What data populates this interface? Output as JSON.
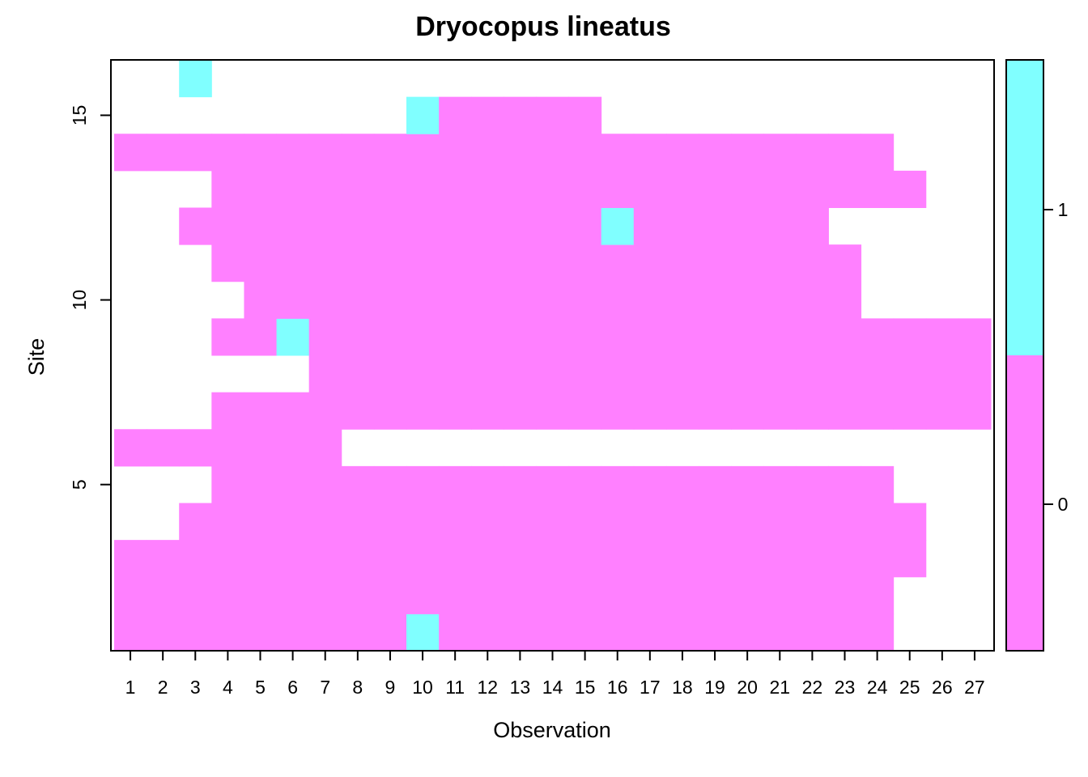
{
  "chart_data": {
    "type": "heatmap",
    "title": "Dryocopus lineatus",
    "xlabel": "Observation",
    "ylabel": "Site",
    "x_ticks": [
      "1",
      "2",
      "3",
      "4",
      "5",
      "6",
      "7",
      "8",
      "9",
      "10",
      "11",
      "12",
      "13",
      "14",
      "15",
      "16",
      "17",
      "18",
      "19",
      "20",
      "21",
      "22",
      "23",
      "24",
      "25",
      "26",
      "27"
    ],
    "y_ticks": [
      "5",
      "10",
      "15"
    ],
    "y_tick_values": [
      5,
      10,
      15
    ],
    "xlim": [
      0.5,
      27.5
    ],
    "ylim": [
      0.5,
      16.5
    ],
    "n_sites": 16,
    "n_obs": 27,
    "colors": {
      "0": "#FF80FF",
      "1": "#80FFFF",
      "NA": "#FFFFFF"
    },
    "legend": {
      "levels": [
        "0",
        "1"
      ],
      "position": "right"
    },
    "matrix_note": "rows = sites 1..16 (bottom to top); columns = observations 1..27; null = missing",
    "values": [
      [
        0,
        0,
        0,
        0,
        0,
        0,
        0,
        0,
        0,
        1,
        0,
        0,
        0,
        0,
        0,
        0,
        0,
        0,
        0,
        0,
        0,
        0,
        0,
        0,
        null,
        null,
        null
      ],
      [
        0,
        0,
        0,
        0,
        0,
        0,
        0,
        0,
        0,
        0,
        0,
        0,
        0,
        0,
        0,
        0,
        0,
        0,
        0,
        0,
        0,
        0,
        0,
        0,
        null,
        null,
        null
      ],
      [
        0,
        0,
        0,
        0,
        0,
        0,
        0,
        0,
        0,
        0,
        0,
        0,
        0,
        0,
        0,
        0,
        0,
        0,
        0,
        0,
        0,
        0,
        0,
        0,
        0,
        null,
        null
      ],
      [
        null,
        null,
        0,
        0,
        0,
        0,
        0,
        0,
        0,
        0,
        0,
        0,
        0,
        0,
        0,
        0,
        0,
        0,
        0,
        0,
        0,
        0,
        0,
        0,
        0,
        null,
        null
      ],
      [
        null,
        null,
        null,
        0,
        0,
        0,
        0,
        0,
        0,
        0,
        0,
        0,
        0,
        0,
        0,
        0,
        0,
        0,
        0,
        0,
        0,
        0,
        0,
        0,
        null,
        null,
        null
      ],
      [
        0,
        0,
        0,
        0,
        0,
        0,
        0,
        null,
        null,
        null,
        null,
        null,
        null,
        null,
        null,
        null,
        null,
        null,
        null,
        null,
        null,
        null,
        null,
        null,
        null,
        null,
        null
      ],
      [
        null,
        null,
        null,
        0,
        0,
        0,
        0,
        0,
        0,
        0,
        0,
        0,
        0,
        0,
        0,
        0,
        0,
        0,
        0,
        0,
        0,
        0,
        0,
        0,
        0,
        0,
        0
      ],
      [
        null,
        null,
        null,
        null,
        null,
        null,
        0,
        0,
        0,
        0,
        0,
        0,
        0,
        0,
        0,
        0,
        0,
        0,
        0,
        0,
        0,
        0,
        0,
        0,
        0,
        0,
        0
      ],
      [
        null,
        null,
        null,
        0,
        0,
        1,
        0,
        0,
        0,
        0,
        0,
        0,
        0,
        0,
        0,
        0,
        0,
        0,
        0,
        0,
        0,
        0,
        0,
        0,
        0,
        0,
        0
      ],
      [
        null,
        null,
        null,
        null,
        0,
        0,
        0,
        0,
        0,
        0,
        0,
        0,
        0,
        0,
        0,
        0,
        0,
        0,
        0,
        0,
        0,
        0,
        0,
        null,
        null,
        null,
        null
      ],
      [
        null,
        null,
        null,
        0,
        0,
        0,
        0,
        0,
        0,
        0,
        0,
        0,
        0,
        0,
        0,
        0,
        0,
        0,
        0,
        0,
        0,
        0,
        0,
        null,
        null,
        null,
        null
      ],
      [
        null,
        null,
        0,
        0,
        0,
        0,
        0,
        0,
        0,
        0,
        0,
        0,
        0,
        0,
        0,
        1,
        0,
        0,
        0,
        0,
        0,
        0,
        null,
        null,
        null,
        null,
        null
      ],
      [
        null,
        null,
        null,
        0,
        0,
        0,
        0,
        0,
        0,
        0,
        0,
        0,
        0,
        0,
        0,
        0,
        0,
        0,
        0,
        0,
        0,
        0,
        0,
        0,
        0,
        null,
        null
      ],
      [
        0,
        0,
        0,
        0,
        0,
        0,
        0,
        0,
        0,
        0,
        0,
        0,
        0,
        0,
        0,
        0,
        0,
        0,
        0,
        0,
        0,
        0,
        0,
        0,
        null,
        null,
        null
      ],
      [
        null,
        null,
        null,
        null,
        null,
        null,
        null,
        null,
        null,
        1,
        0,
        0,
        0,
        0,
        0,
        null,
        null,
        null,
        null,
        null,
        null,
        null,
        null,
        null,
        null,
        null,
        null
      ],
      [
        null,
        null,
        1,
        null,
        null,
        null,
        null,
        null,
        null,
        null,
        null,
        null,
        null,
        null,
        null,
        null,
        null,
        null,
        null,
        null,
        null,
        null,
        null,
        null,
        null,
        null,
        null
      ]
    ]
  }
}
